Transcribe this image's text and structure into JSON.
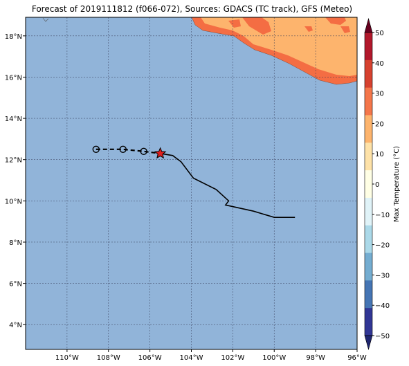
{
  "title": "Forecast of 2019111812 (f066-072), Sources: GDACS (TC track), GFS (Meteo)",
  "map": {
    "lon_range": [
      -112,
      -96
    ],
    "lat_range": [
      2.8,
      18.9
    ],
    "x_ticks": [
      "110°W",
      "108°W",
      "106°W",
      "104°W",
      "102°W",
      "100°W",
      "98°W",
      "96°W"
    ],
    "y_ticks": [
      "4°N",
      "6°N",
      "8°N",
      "10°N",
      "12°N",
      "14°N",
      "16°N",
      "18°N"
    ],
    "grid": true,
    "colors": {
      "ocean": "#91b4d9",
      "land_warm": "#fdb46d",
      "land_hot": "#f46d43",
      "track": "#000000",
      "current_position": "#e02020"
    }
  },
  "track": {
    "observed": [
      {
        "lon": -105.5,
        "lat": 12.3
      },
      {
        "lon": -104.9,
        "lat": 12.2
      },
      {
        "lon": -104.5,
        "lat": 11.9
      },
      {
        "lon": -103.9,
        "lat": 11.1
      },
      {
        "lon": -102.8,
        "lat": 10.55
      },
      {
        "lon": -102.2,
        "lat": 10.0
      },
      {
        "lon": -102.35,
        "lat": 9.8
      },
      {
        "lon": -101.0,
        "lat": 9.5
      },
      {
        "lon": -100.0,
        "lat": 9.2
      },
      {
        "lon": -99.0,
        "lat": 9.2
      }
    ],
    "forecast": [
      {
        "lon": -108.6,
        "lat": 12.5
      },
      {
        "lon": -107.3,
        "lat": 12.5
      },
      {
        "lon": -106.3,
        "lat": 12.4
      },
      {
        "lon": -105.5,
        "lat": 12.3
      }
    ],
    "forecast_points": [
      {
        "lon": -108.6,
        "lat": 12.5
      },
      {
        "lon": -107.3,
        "lat": 12.5
      },
      {
        "lon": -106.3,
        "lat": 12.4
      }
    ],
    "current_position": {
      "lon": -105.5,
      "lat": 12.3
    }
  },
  "colorbar": {
    "label": "Max Temperature (°C)",
    "ticks": [
      "50",
      "40",
      "30",
      "20",
      "10",
      "0",
      "−10",
      "−20",
      "−30",
      "−40",
      "−50"
    ],
    "range": [
      -50,
      50
    ],
    "colors_top_to_bottom": [
      "#67001f",
      "#b2182b",
      "#d6412f",
      "#f4764a",
      "#fdb46d",
      "#fee2a8",
      "#ffffe5",
      "#e0f3f8",
      "#abd9e9",
      "#74add1",
      "#4575b4",
      "#313695",
      "#1f2670"
    ]
  }
}
